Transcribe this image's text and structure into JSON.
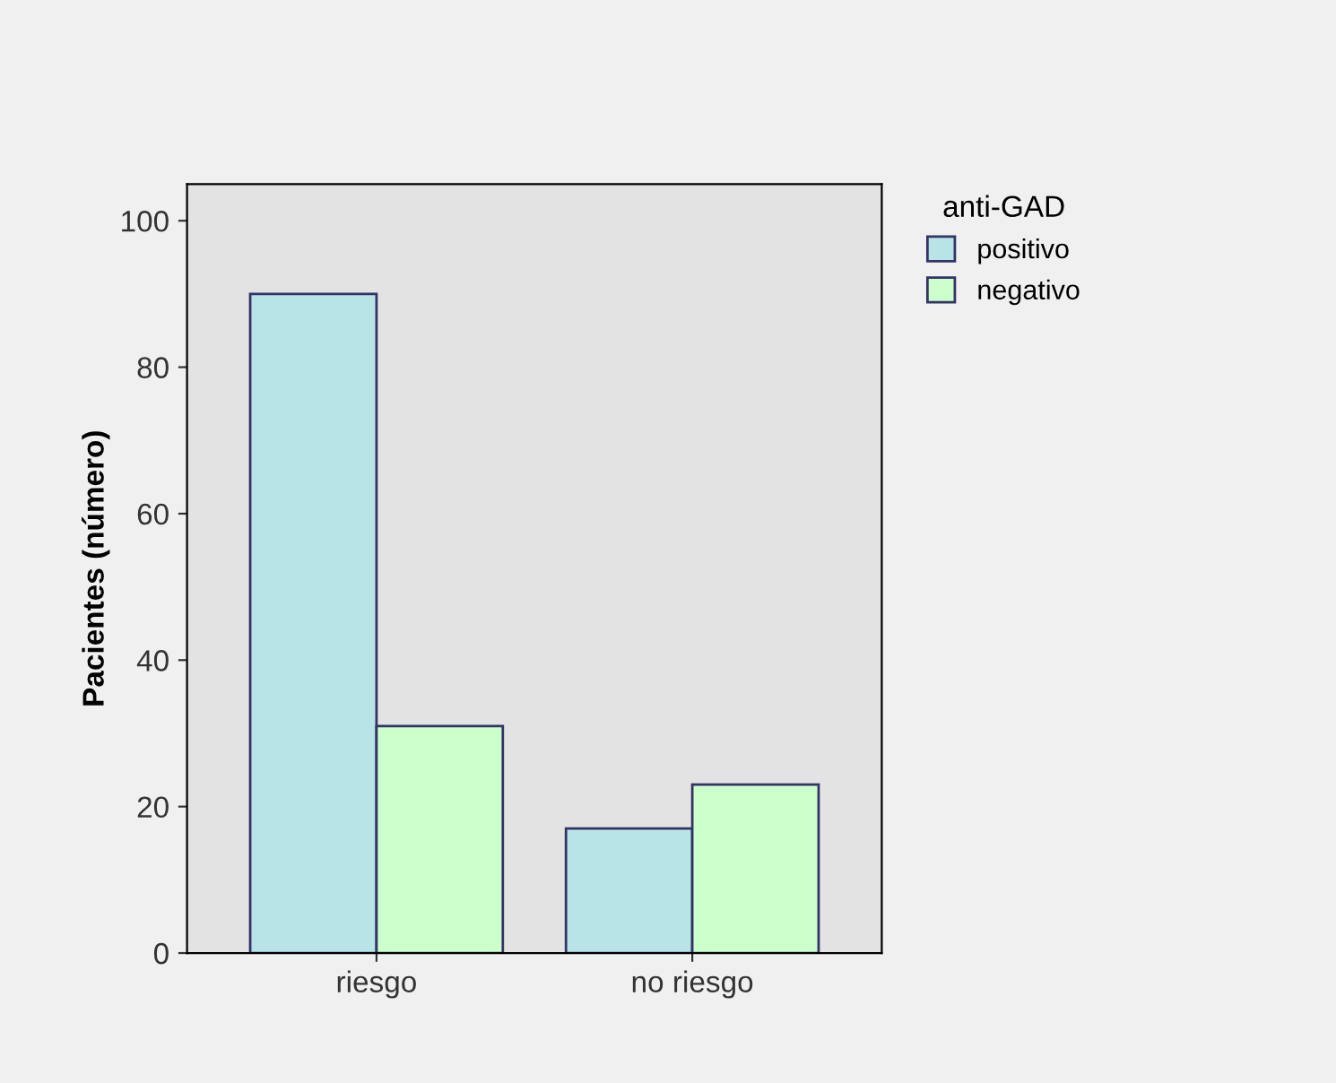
{
  "chart_data": {
    "type": "bar",
    "ylabel": "Pacientes (número)",
    "legend_title": "anti-GAD",
    "legend": "top right",
    "categories": [
      "riesgo",
      "no riesgo"
    ],
    "series": [
      {
        "name": "positivo",
        "color": "#b8e4e8",
        "values": [
          90,
          17
        ]
      },
      {
        "name": "negativo",
        "color": "#ccffcc",
        "values": [
          31,
          23
        ]
      }
    ],
    "ylim": [
      0,
      105
    ],
    "yticks": [
      0,
      20,
      40,
      60,
      80,
      100
    ],
    "grid": false
  }
}
